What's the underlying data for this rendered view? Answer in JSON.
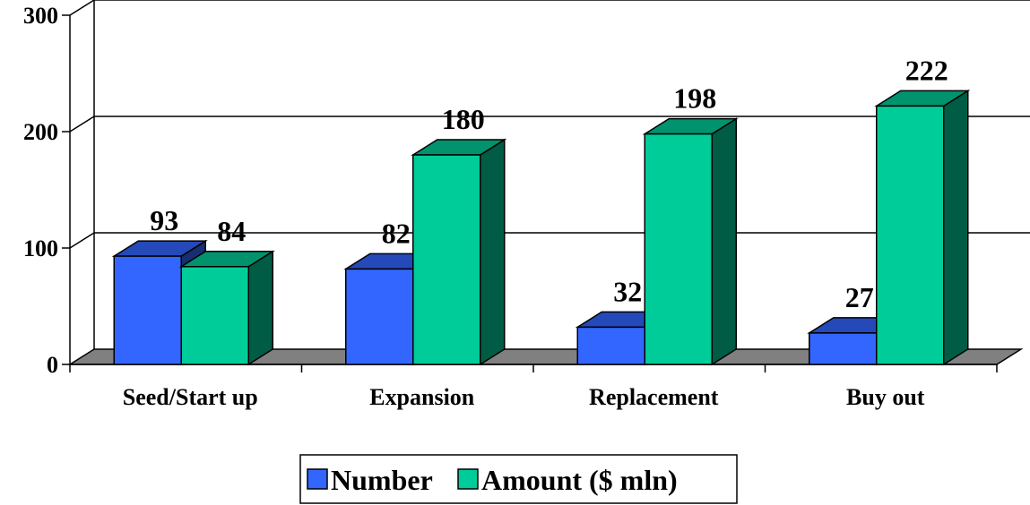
{
  "chart_data": {
    "type": "bar",
    "title": "",
    "xlabel": "",
    "ylabel": "",
    "ylim": [
      0,
      300
    ],
    "yticks": [
      0,
      100,
      200,
      300
    ],
    "categories": [
      "Seed/Start up",
      "Expansion",
      "Replacement",
      "Buy out"
    ],
    "series": [
      {
        "name": "Number",
        "values": [
          93,
          82,
          32,
          27
        ],
        "color": "#3366ff"
      },
      {
        "name": "Amount ($ mln)",
        "values": [
          84,
          180,
          198,
          222
        ],
        "color": "#00cc99"
      }
    ],
    "grid": true,
    "three_d": true,
    "legend": "bottom-center"
  }
}
